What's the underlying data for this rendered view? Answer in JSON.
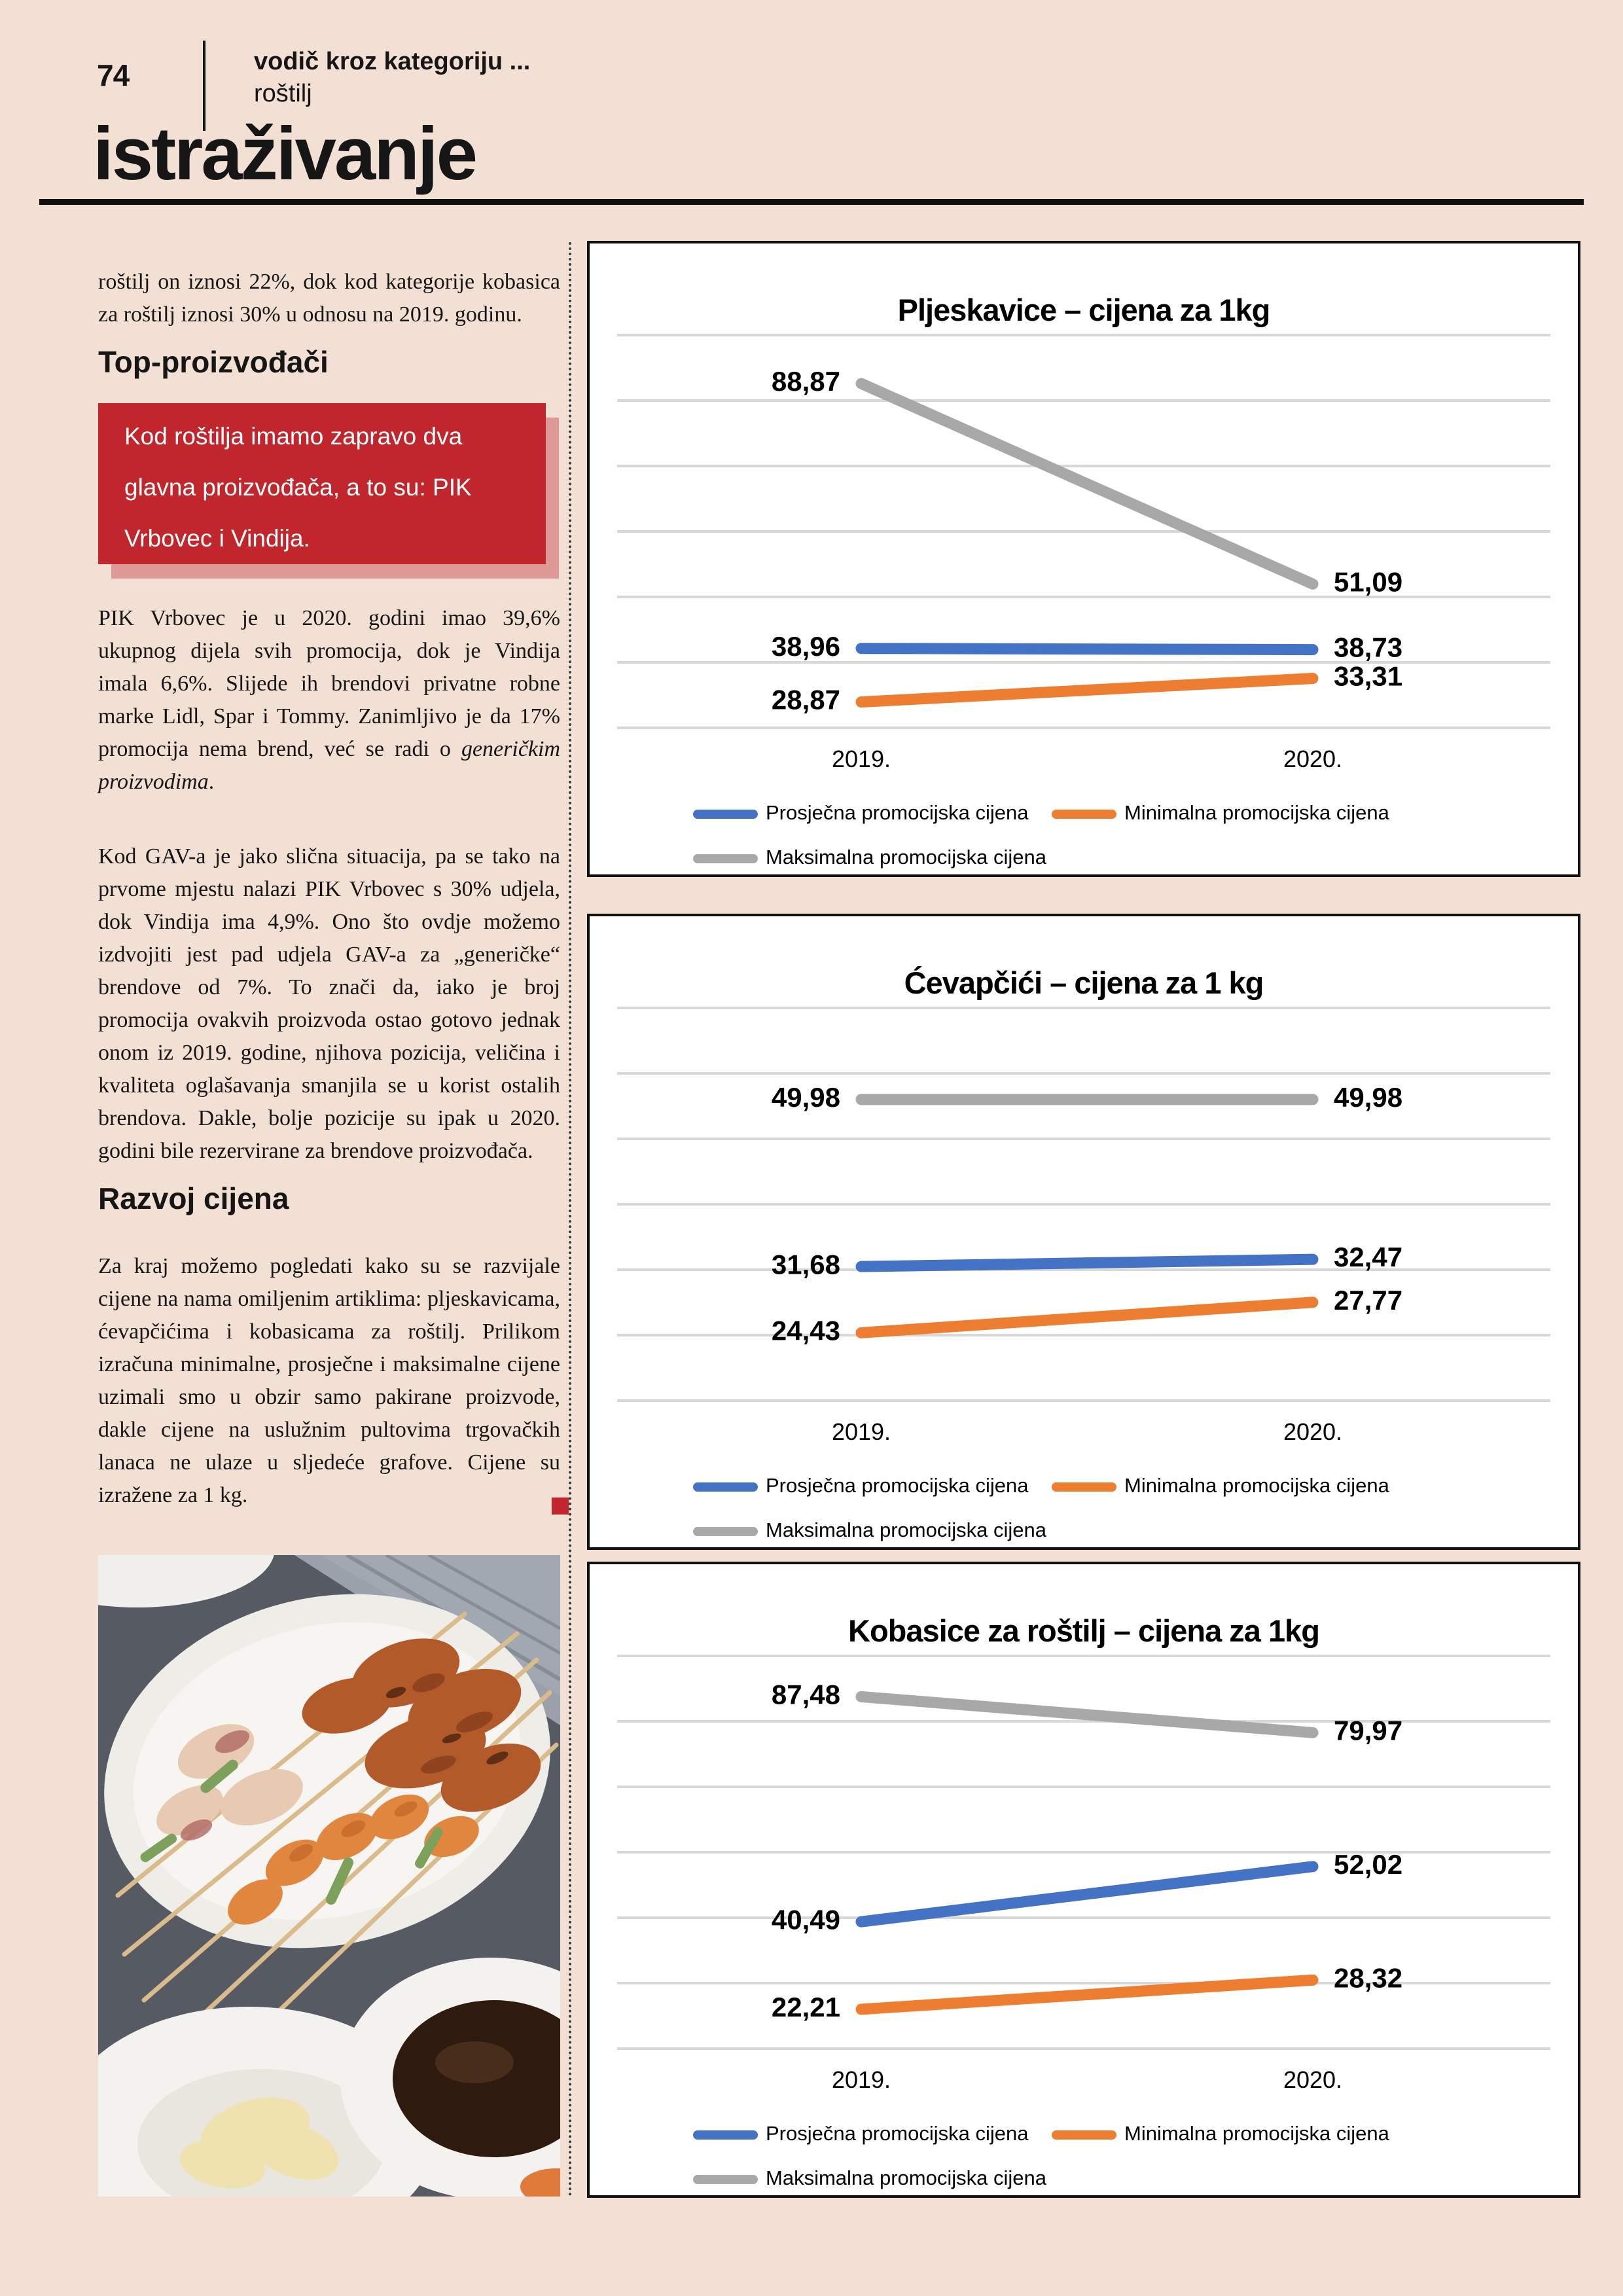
{
  "page": {
    "number": "74",
    "kicker_bold": "vodič kroz kategoriju ...",
    "kicker_sub": "roštilj",
    "section_title": "istraživanje"
  },
  "article": {
    "p1": "roštilj on iznosi 22%, dok kod kategorije kobasica za roštilj iznosi 30% u odnosu na 2019. godinu.",
    "heading_top": "Top-proizvođači",
    "callout": "Kod roštilja imamo zapravo dva glavna proizvođača, a to su: PIK Vrbovec i Vindija.",
    "p2_a": "PIK Vrbovec je u 2020. godini imao 39,6% ukupnog dijela svih promocija, dok je Vindija imala 6,6%. Slijede ih brendovi privatne robne marke Lidl, Spar i Tommy. Zanimljivo je da 17% promocija nema brend, već se radi o ",
    "p2_em": "generičkim proizvodima",
    "p2_b": ".",
    "p3": "Kod GAV-a je jako slična situacija, pa se tako na prvome mjestu nalazi PIK Vrbovec s 30% udjela, dok Vindija ima 4,9%. Ono što ovdje možemo izdvojiti jest pad udjela GAV-a za „generičke“ brendove od 7%. To znači da, iako je broj promocija ovakvih proizvoda ostao gotovo jednak onom iz 2019. godine, njihova pozicija, veličina i kvaliteta oglašavanja smanjila se u korist ostalih brendova. Dakle, bolje pozicije su ipak u 2020. godini bile rezervirane za brendove proizvođača.",
    "heading_razvoj": "Razvoj cijena",
    "p4": "Za kraj možemo pogledati kako su se razvijale cijene na nama omiljenim artiklima: pljeskavicama, ćevapčićima i kobasicama za roštilj. Prilikom izračuna minimalne, prosječne i maksimalne cijene uzimali smo u obzir samo pakirane proizvode, dakle cijene na uslužnim pultovima trgovačkih lanaca ne ulaze u sljedeće grafove. Cijene su izražene za 1 kg."
  },
  "photo": {
    "description": "Grilled meat and shrimp skewers on a white oval plate, with bowls of soy sauce and pickled ginger"
  },
  "colors": {
    "page_background": "#F3E0D4",
    "accent_red": "#C0262C",
    "series_blue": "#4472C4",
    "series_orange": "#ED7D31",
    "series_gray": "#A8A8A8",
    "gridline": "#D9D9D9"
  },
  "chart_data": [
    {
      "type": "line",
      "title": "Pljeskavice – cijena za 1kg",
      "categories": [
        "2019.",
        "2020."
      ],
      "series": [
        {
          "name": "Prosječna promocijska cijena",
          "values": [
            38.96,
            38.73
          ],
          "labels": [
            "38,96",
            "38,73"
          ],
          "color": "#4472C4"
        },
        {
          "name": "Minimalna promocijska cijena",
          "values": [
            28.87,
            33.31
          ],
          "labels": [
            "28,87",
            "33,31"
          ],
          "color": "#ED7D31"
        },
        {
          "name": "Maksimalna promocijska cijena",
          "values": [
            88.87,
            51.09
          ],
          "labels": [
            "88,87",
            "51,09"
          ],
          "color": "#A8A8A8"
        }
      ],
      "ylim": [
        24,
        98
      ],
      "grid": true,
      "legend_position": "bottom"
    },
    {
      "type": "line",
      "title": "Ćevapčići – cijena za 1 kg",
      "categories": [
        "2019.",
        "2020."
      ],
      "series": [
        {
          "name": "Prosječna promocijska cijena",
          "values": [
            31.68,
            32.47
          ],
          "labels": [
            "31,68",
            "32,47"
          ],
          "color": "#4472C4"
        },
        {
          "name": "Minimalna promocijska cijena",
          "values": [
            24.43,
            27.77
          ],
          "labels": [
            "24,43",
            "27,77"
          ],
          "color": "#ED7D31"
        },
        {
          "name": "Maksimalna promocijska cijena",
          "values": [
            49.98,
            49.98
          ],
          "labels": [
            "49,98",
            "49,98"
          ],
          "color": "#A8A8A8"
        }
      ],
      "ylim": [
        17,
        60
      ],
      "grid": true,
      "legend_position": "bottom"
    },
    {
      "type": "line",
      "title": "Kobasice za roštilj – cijena za 1kg",
      "categories": [
        "2019.",
        "2020."
      ],
      "series": [
        {
          "name": "Prosječna promocijska cijena",
          "values": [
            40.49,
            52.02
          ],
          "labels": [
            "40,49",
            "52,02"
          ],
          "color": "#4472C4"
        },
        {
          "name": "Minimalna promocijska cijena",
          "values": [
            22.21,
            28.32
          ],
          "labels": [
            "22,21",
            "28,32"
          ],
          "color": "#ED7D31"
        },
        {
          "name": "Maksimalna promocijska cijena",
          "values": [
            87.48,
            79.97
          ],
          "labels": [
            "87,48",
            "79,97"
          ],
          "color": "#A8A8A8"
        }
      ],
      "ylim": [
        14,
        96
      ],
      "grid": true,
      "legend_position": "bottom"
    }
  ]
}
